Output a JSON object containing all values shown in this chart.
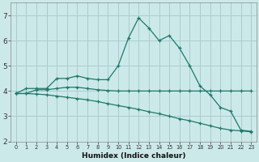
{
  "xlabel": "Humidex (Indice chaleur)",
  "xlim": [
    -0.5,
    23.5
  ],
  "ylim": [
    2,
    7.5
  ],
  "yticks": [
    2,
    3,
    4,
    5,
    6,
    7
  ],
  "xticks": [
    0,
    1,
    2,
    3,
    4,
    5,
    6,
    7,
    8,
    9,
    10,
    11,
    12,
    13,
    14,
    15,
    16,
    17,
    18,
    19,
    20,
    21,
    22,
    23
  ],
  "background_color": "#cce9e9",
  "grid_color": "#aacccc",
  "line_color": "#1a7a6a",
  "line1_x": [
    0,
    1,
    2,
    3,
    4,
    5,
    6,
    7,
    8,
    9,
    10,
    11,
    12,
    13,
    14,
    15,
    16,
    17,
    18,
    19,
    20,
    21,
    22,
    23
  ],
  "line1_y": [
    3.9,
    4.1,
    4.1,
    4.1,
    4.5,
    4.5,
    4.6,
    4.5,
    4.45,
    4.45,
    5.0,
    6.1,
    6.9,
    6.5,
    6.0,
    6.2,
    5.7,
    5.0,
    4.2,
    3.85,
    3.35,
    3.2,
    2.45,
    2.4
  ],
  "line2_x": [
    0,
    1,
    2,
    3,
    4,
    5,
    6,
    7,
    8,
    9,
    10,
    11,
    12,
    13,
    14,
    15,
    16,
    17,
    18,
    19,
    20,
    21,
    22,
    23
  ],
  "line2_y": [
    3.9,
    3.9,
    4.05,
    4.05,
    4.1,
    4.15,
    4.15,
    4.1,
    4.05,
    4.02,
    4.0,
    4.0,
    4.0,
    4.0,
    4.0,
    4.0,
    4.0,
    4.0,
    4.0,
    4.0,
    4.0,
    4.0,
    4.0,
    4.0
  ],
  "line3_x": [
    0,
    1,
    2,
    3,
    4,
    5,
    6,
    7,
    8,
    9,
    10,
    11,
    12,
    13,
    14,
    15,
    16,
    17,
    18,
    19,
    20,
    21,
    22,
    23
  ],
  "line3_y": [
    3.9,
    3.9,
    3.88,
    3.85,
    3.8,
    3.75,
    3.7,
    3.65,
    3.58,
    3.5,
    3.42,
    3.35,
    3.27,
    3.18,
    3.1,
    3.0,
    2.9,
    2.82,
    2.72,
    2.62,
    2.52,
    2.45,
    2.42,
    2.38
  ]
}
